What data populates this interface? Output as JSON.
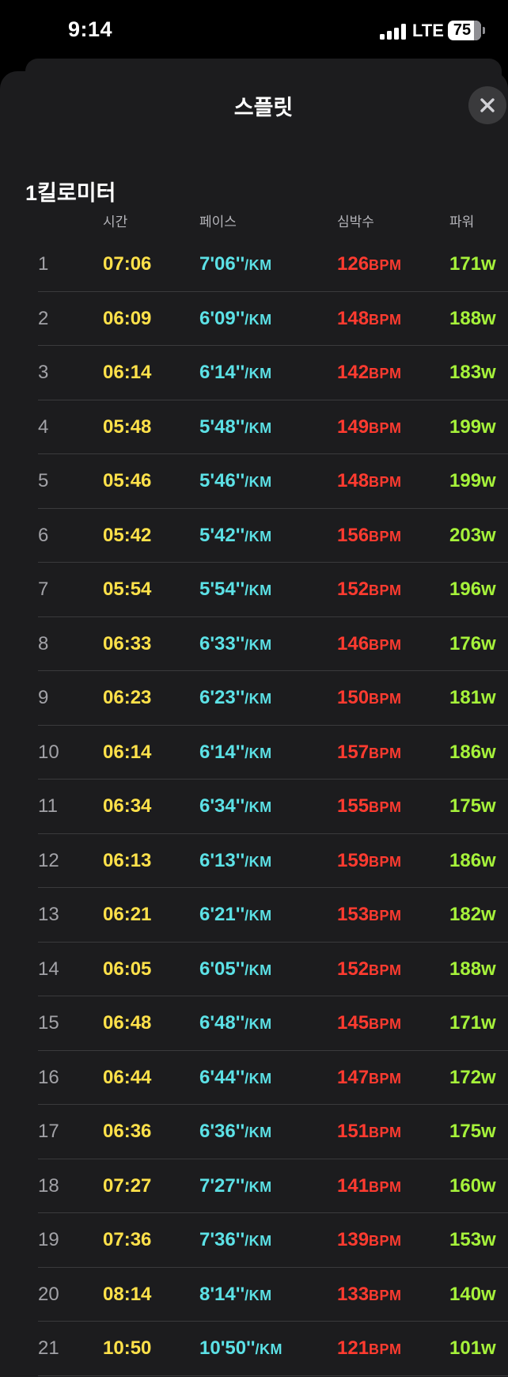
{
  "status_bar": {
    "time": "9:14",
    "network": "LTE",
    "battery": "75"
  },
  "sheet": {
    "title": "스플릿",
    "close_icon": "x-icon",
    "section_title": "1킬로미터"
  },
  "columns": {
    "time": "시간",
    "pace": "페이스",
    "heart_rate": "심박수",
    "power": "파워"
  },
  "units": {
    "pace": "/KM",
    "heart_rate": "BPM",
    "power": "W"
  },
  "colors": {
    "time": "#ffe14a",
    "pace": "#5ce1e6",
    "heart_rate": "#ff3b30",
    "power": "#a6f23a"
  },
  "rows": [
    {
      "index": "1",
      "time": "07:06",
      "pace": "7'06''",
      "heart_rate": "126",
      "power": "171"
    },
    {
      "index": "2",
      "time": "06:09",
      "pace": "6'09''",
      "heart_rate": "148",
      "power": "188"
    },
    {
      "index": "3",
      "time": "06:14",
      "pace": "6'14''",
      "heart_rate": "142",
      "power": "183"
    },
    {
      "index": "4",
      "time": "05:48",
      "pace": "5'48''",
      "heart_rate": "149",
      "power": "199"
    },
    {
      "index": "5",
      "time": "05:46",
      "pace": "5'46''",
      "heart_rate": "148",
      "power": "199"
    },
    {
      "index": "6",
      "time": "05:42",
      "pace": "5'42''",
      "heart_rate": "156",
      "power": "203"
    },
    {
      "index": "7",
      "time": "05:54",
      "pace": "5'54''",
      "heart_rate": "152",
      "power": "196"
    },
    {
      "index": "8",
      "time": "06:33",
      "pace": "6'33''",
      "heart_rate": "146",
      "power": "176"
    },
    {
      "index": "9",
      "time": "06:23",
      "pace": "6'23''",
      "heart_rate": "150",
      "power": "181"
    },
    {
      "index": "10",
      "time": "06:14",
      "pace": "6'14''",
      "heart_rate": "157",
      "power": "186"
    },
    {
      "index": "11",
      "time": "06:34",
      "pace": "6'34''",
      "heart_rate": "155",
      "power": "175"
    },
    {
      "index": "12",
      "time": "06:13",
      "pace": "6'13''",
      "heart_rate": "159",
      "power": "186"
    },
    {
      "index": "13",
      "time": "06:21",
      "pace": "6'21''",
      "heart_rate": "153",
      "power": "182"
    },
    {
      "index": "14",
      "time": "06:05",
      "pace": "6'05''",
      "heart_rate": "152",
      "power": "188"
    },
    {
      "index": "15",
      "time": "06:48",
      "pace": "6'48''",
      "heart_rate": "145",
      "power": "171"
    },
    {
      "index": "16",
      "time": "06:44",
      "pace": "6'44''",
      "heart_rate": "147",
      "power": "172"
    },
    {
      "index": "17",
      "time": "06:36",
      "pace": "6'36''",
      "heart_rate": "151",
      "power": "175"
    },
    {
      "index": "18",
      "time": "07:27",
      "pace": "7'27''",
      "heart_rate": "141",
      "power": "160"
    },
    {
      "index": "19",
      "time": "07:36",
      "pace": "7'36''",
      "heart_rate": "139",
      "power": "153"
    },
    {
      "index": "20",
      "time": "08:14",
      "pace": "8'14''",
      "heart_rate": "133",
      "power": "140"
    },
    {
      "index": "21",
      "time": "10:50",
      "pace": "10'50''",
      "heart_rate": "121",
      "power": "101"
    }
  ]
}
